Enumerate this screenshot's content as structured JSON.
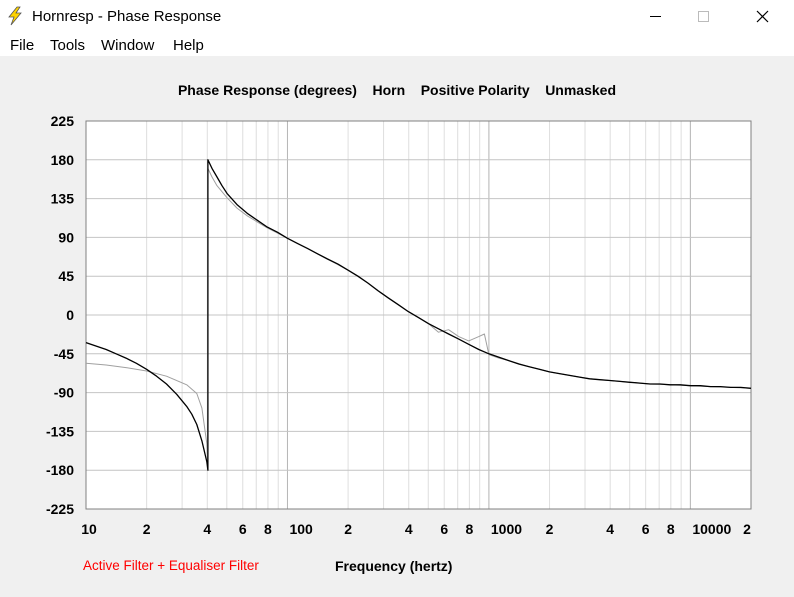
{
  "window": {
    "title": "Hornresp - Phase Response",
    "icon": "lightning-bolt-icon",
    "controls": [
      "minimize-icon",
      "maximize-icon",
      "close-icon"
    ]
  },
  "menu": {
    "items": [
      {
        "label": "File"
      },
      {
        "label": "Tools"
      },
      {
        "label": "Window"
      },
      {
        "label": "Help"
      }
    ]
  },
  "status": {
    "filter_label": "Active Filter + Equaliser Filter",
    "filter_color": "#ff0000"
  },
  "chart_data": {
    "type": "line",
    "title": "Phase Response (degrees)    Horn    Positive Polarity    Unmasked",
    "xlabel": "Frequency (hertz)",
    "ylabel": "",
    "xscale": "log",
    "xlim": [
      10,
      20000
    ],
    "ylim": [
      -225,
      225
    ],
    "grid": true,
    "yticks": [
      {
        "value": 225,
        "label": "225"
      },
      {
        "value": 180,
        "label": "180"
      },
      {
        "value": 135,
        "label": "135"
      },
      {
        "value": 90,
        "label": "90"
      },
      {
        "value": 45,
        "label": "45"
      },
      {
        "value": 0,
        "label": "0"
      },
      {
        "value": -45,
        "label": "-45"
      },
      {
        "value": -90,
        "label": "-90"
      },
      {
        "value": -135,
        "label": "-135"
      },
      {
        "value": -180,
        "label": "-180"
      },
      {
        "value": -225,
        "label": "-225"
      }
    ],
    "xticks": [
      {
        "value": 10,
        "label": "10"
      },
      {
        "value": 20,
        "label": "2"
      },
      {
        "value": 40,
        "label": "4"
      },
      {
        "value": 60,
        "label": "6"
      },
      {
        "value": 80,
        "label": "8"
      },
      {
        "value": 100,
        "label": "100"
      },
      {
        "value": 200,
        "label": "2"
      },
      {
        "value": 400,
        "label": "4"
      },
      {
        "value": 600,
        "label": "6"
      },
      {
        "value": 800,
        "label": "8"
      },
      {
        "value": 1000,
        "label": "1000"
      },
      {
        "value": 2000,
        "label": "2"
      },
      {
        "value": 4000,
        "label": "4"
      },
      {
        "value": 6000,
        "label": "6"
      },
      {
        "value": 8000,
        "label": "8"
      },
      {
        "value": 10000,
        "label": "10000"
      },
      {
        "value": 20000,
        "label": "2"
      }
    ],
    "series": [
      {
        "color": "#000000",
        "points": [
          [
            10,
            -32
          ],
          [
            11.2,
            -36
          ],
          [
            12.6,
            -40
          ],
          [
            14.1,
            -45
          ],
          [
            15.8,
            -50
          ],
          [
            17.8,
            -56
          ],
          [
            20,
            -63
          ],
          [
            22.4,
            -71
          ],
          [
            25.1,
            -80
          ],
          [
            28.2,
            -92
          ],
          [
            31.6,
            -106
          ],
          [
            33.5,
            -115
          ],
          [
            35.5,
            -127
          ],
          [
            37.6,
            -146
          ],
          [
            39.8,
            -170
          ],
          [
            40.3,
            -180
          ],
          [
            40.3,
            180
          ],
          [
            42.2,
            170
          ],
          [
            44.7,
            160
          ],
          [
            47.3,
            150
          ],
          [
            50.1,
            141
          ],
          [
            56.2,
            128
          ],
          [
            63.1,
            118
          ],
          [
            70.8,
            110
          ],
          [
            79.4,
            102
          ],
          [
            89.1,
            96
          ],
          [
            100,
            89
          ],
          [
            112,
            83
          ],
          [
            126,
            77
          ],
          [
            141,
            71
          ],
          [
            158,
            65
          ],
          [
            178,
            59
          ],
          [
            200,
            52
          ],
          [
            224,
            45
          ],
          [
            251,
            37
          ],
          [
            282,
            28
          ],
          [
            316,
            20
          ],
          [
            355,
            12
          ],
          [
            398,
            4
          ],
          [
            447,
            -3
          ],
          [
            501,
            -10
          ],
          [
            562,
            -16
          ],
          [
            631,
            -22
          ],
          [
            708,
            -28
          ],
          [
            794,
            -34
          ],
          [
            891,
            -40
          ],
          [
            1000,
            -45
          ],
          [
            1122,
            -49
          ],
          [
            1259,
            -53
          ],
          [
            1413,
            -57
          ],
          [
            1585,
            -60
          ],
          [
            1778,
            -63
          ],
          [
            2000,
            -66
          ],
          [
            2239,
            -68
          ],
          [
            2512,
            -70
          ],
          [
            2818,
            -72
          ],
          [
            3162,
            -74
          ],
          [
            3548,
            -75
          ],
          [
            3981,
            -76
          ],
          [
            4467,
            -77
          ],
          [
            5012,
            -78
          ],
          [
            5623,
            -79
          ],
          [
            6310,
            -80
          ],
          [
            7079,
            -80
          ],
          [
            7943,
            -81
          ],
          [
            8913,
            -81
          ],
          [
            10000,
            -82
          ],
          [
            11220,
            -82
          ],
          [
            12589,
            -83
          ],
          [
            14125,
            -83
          ],
          [
            15849,
            -84
          ],
          [
            17783,
            -84
          ],
          [
            20000,
            -85
          ]
        ]
      },
      {
        "color": "#a0a0a0",
        "points": [
          [
            10,
            -56
          ],
          [
            12.6,
            -58
          ],
          [
            15.8,
            -61
          ],
          [
            20,
            -65
          ],
          [
            25.1,
            -71
          ],
          [
            31.6,
            -81
          ],
          [
            35.5,
            -91
          ],
          [
            37.6,
            -108
          ],
          [
            39.8,
            -149
          ],
          [
            40.3,
            -180
          ],
          [
            40.3,
            170
          ],
          [
            42.2,
            160
          ],
          [
            44.7,
            150
          ],
          [
            50.1,
            136
          ],
          [
            56.2,
            124
          ],
          [
            63.1,
            115
          ],
          [
            70.8,
            108
          ],
          [
            79.4,
            101
          ],
          [
            89.1,
            95
          ],
          [
            100,
            89
          ],
          [
            126,
            77
          ],
          [
            158,
            65
          ],
          [
            200,
            52
          ],
          [
            251,
            37
          ],
          [
            316,
            20
          ],
          [
            398,
            4
          ],
          [
            501,
            -10
          ],
          [
            562,
            -20
          ],
          [
            631,
            -17
          ],
          [
            708,
            -25
          ],
          [
            794,
            -30
          ],
          [
            891,
            -25
          ],
          [
            950,
            -22
          ],
          [
            1000,
            -46
          ],
          [
            1122,
            -50
          ],
          [
            1259,
            -53
          ],
          [
            1585,
            -60
          ],
          [
            2000,
            -66
          ],
          [
            2512,
            -70
          ],
          [
            3162,
            -74
          ],
          [
            3981,
            -76
          ],
          [
            5012,
            -78
          ],
          [
            6310,
            -80
          ],
          [
            7943,
            -81
          ],
          [
            10000,
            -82
          ],
          [
            12589,
            -83
          ],
          [
            15849,
            -84
          ],
          [
            20000,
            -85
          ]
        ]
      }
    ]
  }
}
